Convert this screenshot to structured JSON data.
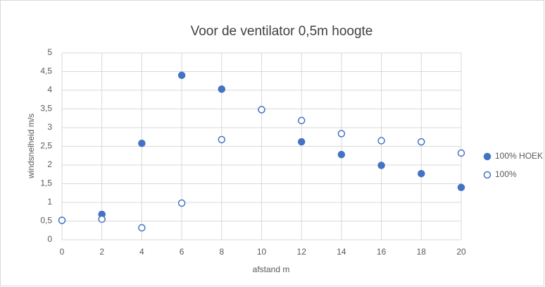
{
  "chart_data": {
    "type": "scatter",
    "title": "Voor de ventilator 0,5m hoogte",
    "x_label": "afstand m",
    "y_label": "windsnelheid m/s",
    "series": [
      {
        "name": "100% HOEK",
        "color": "#4472c4",
        "filled": true,
        "x": [
          0,
          2,
          4,
          6,
          8,
          10,
          12,
          14,
          16,
          18,
          20
        ],
        "values": [
          0.52,
          0.68,
          2.58,
          4.4,
          4.03,
          3.48,
          2.62,
          2.28,
          1.99,
          1.77,
          1.4
        ]
      },
      {
        "name": "100%",
        "color": "#4472c4",
        "filled": false,
        "x": [
          0,
          2,
          4,
          6,
          8,
          10,
          12,
          14,
          16,
          18,
          20
        ],
        "values": [
          0.52,
          0.55,
          0.32,
          0.98,
          2.68,
          3.48,
          3.19,
          2.84,
          2.65,
          2.62,
          2.32
        ]
      }
    ],
    "xlim": [
      0,
      20
    ],
    "xticks": [
      0,
      2,
      4,
      6,
      8,
      10,
      12,
      14,
      16,
      18,
      20
    ],
    "ylim": [
      0,
      5
    ],
    "yticks": [
      0,
      {
        "value": 0.5,
        "label": "0,5"
      },
      1,
      {
        "value": 1.5,
        "label": "1,5"
      },
      2,
      {
        "value": 2.5,
        "label": "2,5"
      },
      3,
      {
        "value": 3.5,
        "label": "3,5"
      },
      4,
      {
        "value": 4.5,
        "label": "4,5"
      },
      5
    ],
    "grid": true,
    "legend": "right"
  }
}
